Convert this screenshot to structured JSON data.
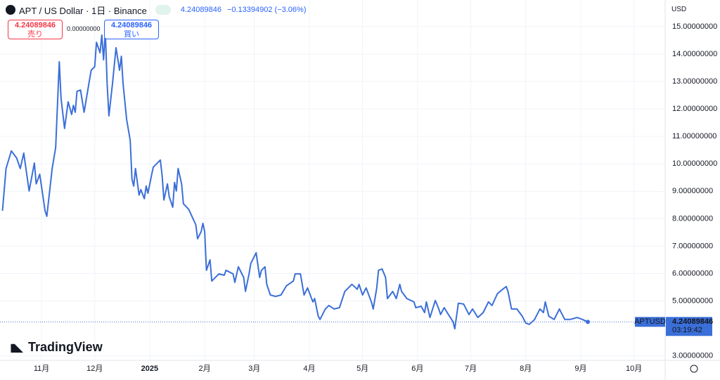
{
  "chart_data": {
    "type": "line",
    "title": "APT / US Dollar · 1日 · Binance",
    "last_price": "4.24089846",
    "change": "−0.13394902 (−3.06%)",
    "sell_label": "売り",
    "sell_price": "4.24089846",
    "spread": "0.00000000",
    "buy_label": "買い",
    "buy_price": "4.24089846",
    "currency": "USD",
    "symbol": "APTUSD",
    "countdown": "03:19:42",
    "brand": "TradingView",
    "grid": true,
    "xlim": [
      -23.4,
      351.6
    ],
    "xticks": [
      {
        "value": 0,
        "label": "11月"
      },
      {
        "value": 30,
        "label": "12月"
      },
      {
        "value": 61,
        "label": "2025"
      },
      {
        "value": 92,
        "label": "2月"
      },
      {
        "value": 120,
        "label": "3月"
      },
      {
        "value": 151,
        "label": "4月"
      },
      {
        "value": 181,
        "label": "5月"
      },
      {
        "value": 212,
        "label": "6月"
      },
      {
        "value": 242,
        "label": "7月"
      },
      {
        "value": 273,
        "label": "8月"
      },
      {
        "value": 304,
        "label": "9月"
      },
      {
        "value": 334,
        "label": "10月"
      }
    ],
    "ylim": [
      2.84,
      15.97
    ],
    "yticks": [
      {
        "value": 3,
        "label": "3.00000000"
      },
      {
        "value": 5,
        "label": "5.00000000"
      },
      {
        "value": 6,
        "label": "6.00000000"
      },
      {
        "value": 7,
        "label": "7.00000000"
      },
      {
        "value": 8,
        "label": "8.00000000"
      },
      {
        "value": 9,
        "label": "9.00000000"
      },
      {
        "value": 10,
        "label": "10.00000000"
      },
      {
        "value": 11,
        "label": "11.00000000"
      },
      {
        "value": 12,
        "label": "12.00000000"
      },
      {
        "value": 13,
        "label": "13.00000000"
      },
      {
        "value": 14,
        "label": "14.00000000"
      },
      {
        "value": 15,
        "label": "15.00000000"
      }
    ],
    "x": [
      -22,
      -20,
      -17,
      -14,
      -12,
      -10,
      -7,
      -4,
      -3,
      -1,
      2,
      3,
      6,
      8,
      9,
      10,
      11,
      13,
      15,
      17,
      18,
      19,
      20,
      22,
      24,
      27,
      28,
      30,
      31,
      33,
      34,
      35,
      36,
      37,
      38,
      40,
      42,
      44,
      45,
      46,
      48,
      50,
      51,
      52,
      53,
      55,
      56,
      58,
      59,
      60,
      62,
      63,
      67,
      68,
      69,
      71,
      72,
      74,
      75,
      76,
      77,
      79,
      80,
      83,
      87,
      88,
      90,
      91,
      92,
      93,
      95,
      96,
      100,
      103,
      104,
      108,
      109,
      111,
      114,
      115,
      117,
      118,
      121,
      123,
      124,
      126,
      127,
      129,
      132,
      135,
      138,
      142,
      143,
      146,
      148,
      150,
      153,
      154,
      156,
      157,
      160,
      162,
      165,
      168,
      171,
      175,
      178,
      179,
      181,
      183,
      186,
      187,
      189,
      190,
      192,
      194,
      195,
      198,
      200,
      202,
      203,
      206,
      210,
      211,
      214,
      216,
      217,
      219,
      222,
      224,
      225,
      227,
      230,
      232,
      233,
      235,
      238,
      241,
      243,
      246,
      249,
      252,
      254,
      257,
      260,
      262,
      263,
      265,
      268,
      271,
      273,
      275,
      278,
      281,
      283,
      284,
      286,
      289,
      292,
      295,
      298,
      302,
      305,
      308
    ],
    "series": [
      {
        "name": "APTUSD",
        "color": "#3b6fd8",
        "values": [
          8.29,
          9.83,
          10.47,
          10.21,
          9.83,
          10.39,
          9.01,
          10.03,
          9.27,
          9.62,
          8.29,
          8.09,
          9.83,
          10.6,
          12.13,
          13.72,
          12.39,
          11.29,
          12.26,
          11.8,
          12.13,
          11.88,
          12.64,
          12.69,
          11.88,
          13.03,
          13.41,
          13.54,
          14.43,
          14.05,
          14.69,
          13.79,
          14.82,
          12.9,
          11.75,
          12.9,
          14.23,
          13.41,
          13.92,
          12.9,
          11.62,
          10.85,
          9.44,
          9.19,
          9.83,
          8.86,
          9.06,
          8.73,
          9.19,
          8.93,
          9.57,
          9.88,
          10.14,
          9.57,
          8.68,
          9.27,
          8.8,
          8.42,
          9.32,
          9.01,
          9.83,
          9.27,
          8.55,
          8.34,
          7.78,
          7.27,
          7.53,
          7.83,
          7.53,
          6.12,
          6.5,
          5.73,
          5.99,
          5.94,
          6.12,
          5.99,
          5.68,
          6.25,
          5.86,
          5.35,
          5.99,
          6.37,
          6.76,
          5.86,
          6.12,
          6.25,
          5.61,
          5.22,
          5.17,
          5.22,
          5.55,
          5.73,
          5.99,
          5.99,
          5.22,
          5.48,
          4.97,
          5.09,
          4.45,
          4.33,
          4.71,
          4.84,
          4.71,
          4.76,
          5.35,
          5.61,
          5.43,
          5.61,
          5.22,
          5.48,
          4.97,
          4.71,
          5.48,
          6.12,
          6.17,
          5.86,
          5.09,
          5.35,
          5.09,
          5.61,
          5.35,
          5.09,
          4.97,
          4.76,
          4.81,
          4.58,
          4.97,
          4.4,
          5.02,
          4.71,
          4.51,
          4.76,
          4.45,
          4.25,
          3.99,
          4.92,
          4.89,
          4.51,
          4.71,
          4.4,
          4.58,
          4.97,
          4.84,
          5.27,
          5.43,
          5.53,
          5.35,
          4.71,
          4.71,
          4.45,
          4.2,
          4.15,
          4.33,
          4.71,
          4.58,
          4.97,
          4.45,
          4.33,
          4.71,
          4.33,
          4.33,
          4.4,
          4.33,
          4.24089846
        ]
      }
    ]
  }
}
